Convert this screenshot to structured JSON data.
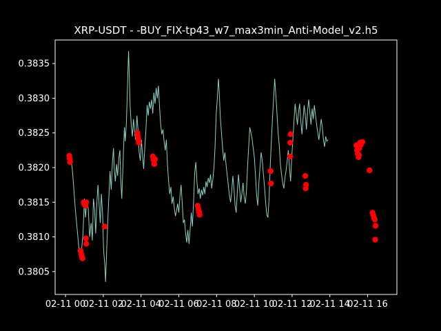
{
  "chart_data": {
    "type": "line",
    "title": "XRP-USDT - -BUY_FIX-tp43_w7_max3min_Anti-Model_v2.h5",
    "xlabel": "",
    "ylabel": "",
    "x_unit": "hours since 2025-02-11 00:00 (tick labels print only '02-11 HH')",
    "xlim": [
      -0.55,
      17.55
    ],
    "ylim": [
      0.38017,
      0.38384
    ],
    "x_ticks": [
      {
        "x": 0,
        "label": "02-11 00"
      },
      {
        "x": 2,
        "label": "02-11 02"
      },
      {
        "x": 4,
        "label": "02-11 04"
      },
      {
        "x": 6,
        "label": "02-11 06"
      },
      {
        "x": 8,
        "label": "02-11 08"
      },
      {
        "x": 10,
        "label": "02-11 10"
      },
      {
        "x": 12,
        "label": "02-11 12"
      },
      {
        "x": 14,
        "label": "02-11 14"
      },
      {
        "x": 16,
        "label": "02-11 16"
      }
    ],
    "y_ticks": [
      {
        "y": 0.3805,
        "label": "0.3805"
      },
      {
        "y": 0.381,
        "label": "0.3810"
      },
      {
        "y": 0.3815,
        "label": "0.3815"
      },
      {
        "y": 0.382,
        "label": "0.3820"
      },
      {
        "y": 0.3825,
        "label": "0.3825"
      },
      {
        "y": 0.383,
        "label": "0.3830"
      },
      {
        "y": 0.3835,
        "label": "0.3835"
      }
    ],
    "grid": false,
    "legend": "none",
    "colors": {
      "background": "#000000",
      "line": "#8dd3c7",
      "marker": "#ff0000",
      "text": "#ffffff",
      "axes": "#ffffff"
    },
    "series": [
      {
        "style": "line",
        "points": [
          [
            0.2,
            0.38212
          ],
          [
            0.28,
            0.38215
          ],
          [
            0.36,
            0.38198
          ],
          [
            0.44,
            0.3817
          ],
          [
            0.52,
            0.3814
          ],
          [
            0.62,
            0.3811
          ],
          [
            0.72,
            0.3808
          ],
          [
            0.82,
            0.38073
          ],
          [
            0.92,
            0.38102
          ],
          [
            1.0,
            0.38155
          ],
          [
            1.06,
            0.38128
          ],
          [
            1.12,
            0.3815
          ],
          [
            1.2,
            0.38142
          ],
          [
            1.28,
            0.381
          ],
          [
            1.36,
            0.3812
          ],
          [
            1.42,
            0.38095
          ],
          [
            1.48,
            0.38155
          ],
          [
            1.54,
            0.3814
          ],
          [
            1.6,
            0.38105
          ],
          [
            1.66,
            0.3815
          ],
          [
            1.72,
            0.38175
          ],
          [
            1.78,
            0.38148
          ],
          [
            1.84,
            0.3812
          ],
          [
            1.9,
            0.38162
          ],
          [
            1.96,
            0.38135
          ],
          [
            2.02,
            0.3808
          ],
          [
            2.08,
            0.3806
          ],
          [
            2.12,
            0.38035
          ],
          [
            2.18,
            0.3808
          ],
          [
            2.24,
            0.38125
          ],
          [
            2.3,
            0.3816
          ],
          [
            2.36,
            0.38195
          ],
          [
            2.42,
            0.38168
          ],
          [
            2.48,
            0.38205
          ],
          [
            2.54,
            0.38228
          ],
          [
            2.58,
            0.38198
          ],
          [
            2.64,
            0.3818
          ],
          [
            2.7,
            0.38205
          ],
          [
            2.76,
            0.38188
          ],
          [
            2.82,
            0.38212
          ],
          [
            2.88,
            0.38225
          ],
          [
            2.92,
            0.38185
          ],
          [
            2.98,
            0.38155
          ],
          [
            3.04,
            0.382
          ],
          [
            3.08,
            0.38232
          ],
          [
            3.12,
            0.38258
          ],
          [
            3.16,
            0.38238
          ],
          [
            3.22,
            0.38262
          ],
          [
            3.26,
            0.38295
          ],
          [
            3.3,
            0.38335
          ],
          [
            3.34,
            0.38368
          ],
          [
            3.38,
            0.3833
          ],
          [
            3.42,
            0.3829
          ],
          [
            3.48,
            0.38262
          ],
          [
            3.54,
            0.38245
          ],
          [
            3.6,
            0.3827
          ],
          [
            3.66,
            0.3825
          ],
          [
            3.72,
            0.3824
          ],
          [
            3.78,
            0.38275
          ],
          [
            3.84,
            0.38255
          ],
          [
            3.9,
            0.38222
          ],
          [
            3.96,
            0.3821
          ],
          [
            4.02,
            0.3824
          ],
          [
            4.08,
            0.38218
          ],
          [
            4.14,
            0.38198
          ],
          [
            4.2,
            0.3823
          ],
          [
            4.26,
            0.38255
          ],
          [
            4.32,
            0.3829
          ],
          [
            4.38,
            0.38275
          ],
          [
            4.44,
            0.38295
          ],
          [
            4.5,
            0.38285
          ],
          [
            4.56,
            0.38298
          ],
          [
            4.62,
            0.38278
          ],
          [
            4.68,
            0.38308
          ],
          [
            4.74,
            0.38292
          ],
          [
            4.8,
            0.38315
          ],
          [
            4.86,
            0.383
          ],
          [
            4.92,
            0.38318
          ],
          [
            4.98,
            0.38288
          ],
          [
            5.04,
            0.38262
          ],
          [
            5.1,
            0.38248
          ],
          [
            5.16,
            0.38255
          ],
          [
            5.22,
            0.38238
          ],
          [
            5.28,
            0.38225
          ],
          [
            5.34,
            0.3824
          ],
          [
            5.4,
            0.38205
          ],
          [
            5.46,
            0.3818
          ],
          [
            5.52,
            0.38162
          ],
          [
            5.58,
            0.38172
          ],
          [
            5.64,
            0.38148
          ],
          [
            5.7,
            0.38158
          ],
          [
            5.76,
            0.38142
          ],
          [
            5.82,
            0.3813
          ],
          [
            5.88,
            0.38138
          ],
          [
            5.94,
            0.38148
          ],
          [
            6.0,
            0.38135
          ],
          [
            6.06,
            0.38158
          ],
          [
            6.12,
            0.38175
          ],
          [
            6.18,
            0.3815
          ],
          [
            6.24,
            0.3812
          ],
          [
            6.3,
            0.38125
          ],
          [
            6.36,
            0.38105
          ],
          [
            6.42,
            0.38092
          ],
          [
            6.48,
            0.3811
          ],
          [
            6.54,
            0.3809
          ],
          [
            6.6,
            0.3811
          ],
          [
            6.66,
            0.38135
          ],
          [
            6.72,
            0.38115
          ],
          [
            6.78,
            0.3815
          ],
          [
            6.84,
            0.38192
          ],
          [
            6.9,
            0.38208
          ],
          [
            6.96,
            0.3818
          ],
          [
            7.02,
            0.38162
          ],
          [
            7.08,
            0.3817
          ],
          [
            7.14,
            0.38155
          ],
          [
            7.2,
            0.38168
          ],
          [
            7.26,
            0.3816
          ],
          [
            7.32,
            0.38172
          ],
          [
            7.38,
            0.38162
          ],
          [
            7.44,
            0.3818
          ],
          [
            7.5,
            0.38172
          ],
          [
            7.56,
            0.38185
          ],
          [
            7.62,
            0.38178
          ],
          [
            7.68,
            0.3819
          ],
          [
            7.74,
            0.3817
          ],
          [
            7.8,
            0.38182
          ],
          [
            7.86,
            0.382
          ],
          [
            7.92,
            0.3823
          ],
          [
            7.98,
            0.38278
          ],
          [
            8.04,
            0.383
          ],
          [
            8.1,
            0.38328
          ],
          [
            8.14,
            0.3831
          ],
          [
            8.2,
            0.38272
          ],
          [
            8.26,
            0.3825
          ],
          [
            8.32,
            0.38228
          ],
          [
            8.38,
            0.3821
          ],
          [
            8.44,
            0.38222
          ],
          [
            8.5,
            0.38205
          ],
          [
            8.56,
            0.3819
          ],
          [
            8.62,
            0.38175
          ],
          [
            8.68,
            0.3816
          ],
          [
            8.74,
            0.3815
          ],
          [
            8.8,
            0.38165
          ],
          [
            8.86,
            0.38188
          ],
          [
            8.92,
            0.3817
          ],
          [
            8.98,
            0.38145
          ],
          [
            9.04,
            0.38135
          ],
          [
            9.1,
            0.38165
          ],
          [
            9.16,
            0.3819
          ],
          [
            9.22,
            0.3817
          ],
          [
            9.28,
            0.3815
          ],
          [
            9.34,
            0.38162
          ],
          [
            9.4,
            0.38178
          ],
          [
            9.46,
            0.38158
          ],
          [
            9.52,
            0.38148
          ],
          [
            9.58,
            0.38165
          ],
          [
            9.64,
            0.382
          ],
          [
            9.7,
            0.3823
          ],
          [
            9.76,
            0.38258
          ],
          [
            9.82,
            0.3825
          ],
          [
            9.88,
            0.38242
          ],
          [
            9.94,
            0.38228
          ],
          [
            10.0,
            0.38215
          ],
          [
            10.06,
            0.3819
          ],
          [
            10.12,
            0.3816
          ],
          [
            10.18,
            0.38145
          ],
          [
            10.24,
            0.38178
          ],
          [
            10.3,
            0.382
          ],
          [
            10.36,
            0.38222
          ],
          [
            10.42,
            0.3821
          ],
          [
            10.48,
            0.3819
          ],
          [
            10.54,
            0.38172
          ],
          [
            10.6,
            0.3815
          ],
          [
            10.66,
            0.38132
          ],
          [
            10.72,
            0.38128
          ],
          [
            10.78,
            0.38155
          ],
          [
            10.84,
            0.382
          ],
          [
            10.9,
            0.38238
          ],
          [
            10.96,
            0.3827
          ],
          [
            11.02,
            0.383
          ],
          [
            11.08,
            0.38328
          ],
          [
            11.14,
            0.38305
          ],
          [
            11.2,
            0.38278
          ],
          [
            11.26,
            0.3825
          ],
          [
            11.32,
            0.38232
          ],
          [
            11.38,
            0.38205
          ],
          [
            11.44,
            0.3819
          ],
          [
            11.5,
            0.38178
          ],
          [
            11.56,
            0.3817
          ],
          [
            11.62,
            0.38185
          ],
          [
            11.68,
            0.38195
          ],
          [
            11.74,
            0.3821
          ],
          [
            11.8,
            0.38225
          ],
          [
            11.86,
            0.382
          ],
          [
            11.92,
            0.3818
          ],
          [
            11.98,
            0.38215
          ],
          [
            12.04,
            0.3824
          ],
          [
            12.1,
            0.38268
          ],
          [
            12.16,
            0.38292
          ],
          [
            12.22,
            0.38278
          ],
          [
            12.28,
            0.38262
          ],
          [
            12.34,
            0.3828
          ],
          [
            12.4,
            0.38292
          ],
          [
            12.46,
            0.38268
          ],
          [
            12.52,
            0.38248
          ],
          [
            12.58,
            0.3827
          ],
          [
            12.64,
            0.3829
          ],
          [
            12.7,
            0.38275
          ],
          [
            12.76,
            0.38255
          ],
          [
            12.82,
            0.38282
          ],
          [
            12.88,
            0.38298
          ],
          [
            12.94,
            0.3828
          ],
          [
            13.0,
            0.38262
          ],
          [
            13.06,
            0.38285
          ],
          [
            13.12,
            0.3827
          ],
          [
            13.18,
            0.3829
          ],
          [
            13.24,
            0.38275
          ],
          [
            13.3,
            0.38262
          ],
          [
            13.36,
            0.3825
          ],
          [
            13.42,
            0.3824
          ],
          [
            13.48,
            0.38255
          ],
          [
            13.54,
            0.3827
          ],
          [
            13.6,
            0.38258
          ],
          [
            13.66,
            0.3824
          ],
          [
            13.72,
            0.3823
          ],
          [
            13.78,
            0.38245
          ],
          [
            13.84,
            0.38238
          ],
          [
            13.9,
            0.3824
          ]
        ]
      },
      {
        "style": "markers",
        "points": [
          [
            0.2,
            0.38217
          ],
          [
            0.22,
            0.38213
          ],
          [
            0.24,
            0.38208
          ],
          [
            0.8,
            0.3808
          ],
          [
            0.84,
            0.38075
          ],
          [
            0.88,
            0.38071
          ],
          [
            0.9,
            0.38069
          ],
          [
            0.96,
            0.3815
          ],
          [
            1.0,
            0.38147
          ],
          [
            1.06,
            0.38145
          ],
          [
            1.1,
            0.3815
          ],
          [
            1.08,
            0.38098
          ],
          [
            1.1,
            0.3809
          ],
          [
            2.08,
            0.38115
          ],
          [
            3.8,
            0.3825
          ],
          [
            3.84,
            0.38245
          ],
          [
            3.86,
            0.3824
          ],
          [
            3.88,
            0.38236
          ],
          [
            4.62,
            0.38216
          ],
          [
            4.66,
            0.38211
          ],
          [
            4.7,
            0.38205
          ],
          [
            4.74,
            0.38212
          ],
          [
            7.0,
            0.38145
          ],
          [
            7.04,
            0.3814
          ],
          [
            7.08,
            0.38136
          ],
          [
            7.1,
            0.38132
          ],
          [
            10.86,
            0.38195
          ],
          [
            10.88,
            0.38177
          ],
          [
            11.92,
            0.38248
          ],
          [
            11.9,
            0.38236
          ],
          [
            11.9,
            0.38216
          ],
          [
            12.7,
            0.38188
          ],
          [
            12.74,
            0.38175
          ],
          [
            12.72,
            0.3817
          ],
          [
            15.4,
            0.38232
          ],
          [
            15.44,
            0.38225
          ],
          [
            15.48,
            0.3822
          ],
          [
            15.52,
            0.38215
          ],
          [
            15.56,
            0.38228
          ],
          [
            15.6,
            0.38236
          ],
          [
            15.64,
            0.38233
          ],
          [
            15.68,
            0.38236
          ],
          [
            15.72,
            0.38237
          ],
          [
            15.54,
            0.38218
          ],
          [
            16.1,
            0.38196
          ],
          [
            16.26,
            0.38135
          ],
          [
            16.3,
            0.38131
          ],
          [
            16.34,
            0.38127
          ],
          [
            16.38,
            0.38125
          ],
          [
            16.42,
            0.38116
          ],
          [
            16.4,
            0.38096
          ]
        ]
      }
    ]
  }
}
